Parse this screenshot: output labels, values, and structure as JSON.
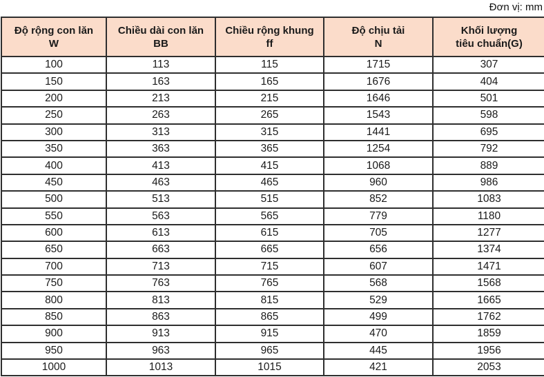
{
  "unit_label": "Đơn vị: mm",
  "table": {
    "columns": [
      {
        "title": "Độ rộng con lăn",
        "subtitle": "W"
      },
      {
        "title": "Chiều dài con lăn",
        "subtitle": "BB"
      },
      {
        "title": "Chiều rộng khung",
        "subtitle": "ff"
      },
      {
        "title": "Độ chịu tải",
        "subtitle": "N"
      },
      {
        "title": "Khối lượng",
        "subtitle": "tiêu chuẩn(G)"
      }
    ],
    "rows": [
      [
        "100",
        "113",
        "115",
        "1715",
        "307"
      ],
      [
        "150",
        "163",
        "165",
        "1676",
        "404"
      ],
      [
        "200",
        "213",
        "215",
        "1646",
        "501"
      ],
      [
        "250",
        "263",
        "265",
        "1543",
        "598"
      ],
      [
        "300",
        "313",
        "315",
        "1441",
        "695"
      ],
      [
        "350",
        "363",
        "365",
        "1254",
        "792"
      ],
      [
        "400",
        "413",
        "415",
        "1068",
        "889"
      ],
      [
        "450",
        "463",
        "465",
        "960",
        "986"
      ],
      [
        "500",
        "513",
        "515",
        "852",
        "1083"
      ],
      [
        "550",
        "563",
        "565",
        "779",
        "1180"
      ],
      [
        "600",
        "613",
        "615",
        "705",
        "1277"
      ],
      [
        "650",
        "663",
        "665",
        "656",
        "1374"
      ],
      [
        "700",
        "713",
        "715",
        "607",
        "1471"
      ],
      [
        "750",
        "763",
        "765",
        "568",
        "1568"
      ],
      [
        "800",
        "813",
        "815",
        "529",
        "1665"
      ],
      [
        "850",
        "863",
        "865",
        "499",
        "1762"
      ],
      [
        "900",
        "913",
        "915",
        "470",
        "1859"
      ],
      [
        "950",
        "963",
        "965",
        "445",
        "1956"
      ],
      [
        "1000",
        "1013",
        "1015",
        "421",
        "2053"
      ]
    ]
  },
  "colors": {
    "header_bg": "#fbdcca",
    "border": "#2e2e2e",
    "text": "#1a1a1a"
  }
}
